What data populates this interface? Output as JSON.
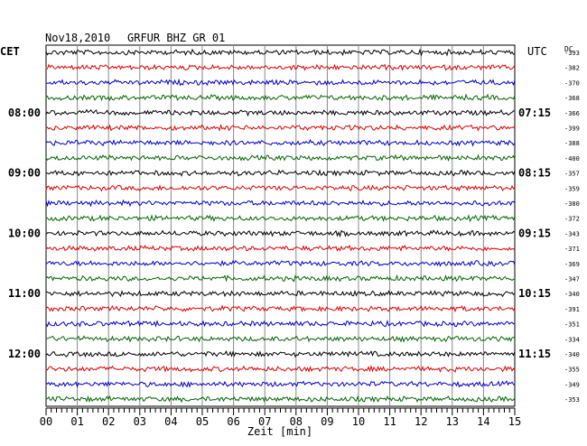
{
  "header": {
    "date": "Nov18,2010",
    "station": "GRFUR BHZ GR 01",
    "left_zone": "CET",
    "right_zone": "UTC",
    "dc_label": "DC"
  },
  "chart_data": {
    "type": "line",
    "title": "Nov18,2010   GRFUR BHZ GR 01",
    "xlabel": "Zeit [min]",
    "xlim": [
      0,
      15
    ],
    "x_ticks": [
      "00",
      "01",
      "02",
      "03",
      "04",
      "05",
      "06",
      "07",
      "08",
      "09",
      "10",
      "11",
      "12",
      "13",
      "14",
      "15"
    ],
    "left_time_labels": [
      "08:00",
      "09:00",
      "10:00",
      "11:00",
      "12:00"
    ],
    "right_time_labels": [
      "07:15",
      "08:15",
      "09:15",
      "10:15",
      "11:15"
    ],
    "time_label_rows": [
      4,
      8,
      12,
      16,
      20
    ],
    "trace_colors": [
      "#000000",
      "#dd0000",
      "#0000cc",
      "#006600"
    ],
    "dc_offsets": [
      -393,
      -382,
      -370,
      -368,
      -366,
      -399,
      -388,
      -400,
      -357,
      -359,
      -380,
      -372,
      -343,
      -371,
      -369,
      -347,
      -340,
      -391,
      -351,
      -334,
      -340,
      -355,
      -349,
      -353
    ],
    "grid": true
  }
}
